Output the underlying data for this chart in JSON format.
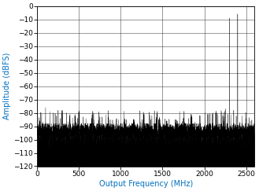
{
  "title": "",
  "xlabel": "Output Frequency (MHz)",
  "ylabel": "Amplitude (dBFS)",
  "xlim": [
    0,
    2600
  ],
  "ylim": [
    -120,
    0
  ],
  "xticks": [
    0,
    500,
    1000,
    1500,
    2000,
    2500
  ],
  "yticks": [
    0,
    -10,
    -20,
    -30,
    -40,
    -50,
    -60,
    -70,
    -80,
    -90,
    -100,
    -110,
    -120
  ],
  "noise_floor": -95,
  "noise_std": 3.5,
  "axis_label_color": "#0070C0",
  "tick_label_color": "#000000",
  "background_color": "#ffffff",
  "grid_color": "#888888",
  "seed": 42,
  "figsize": [
    3.29,
    2.43
  ],
  "dpi": 100,
  "xlabel_fontsize": 7,
  "ylabel_fontsize": 7,
  "tick_fontsize": 6.5
}
